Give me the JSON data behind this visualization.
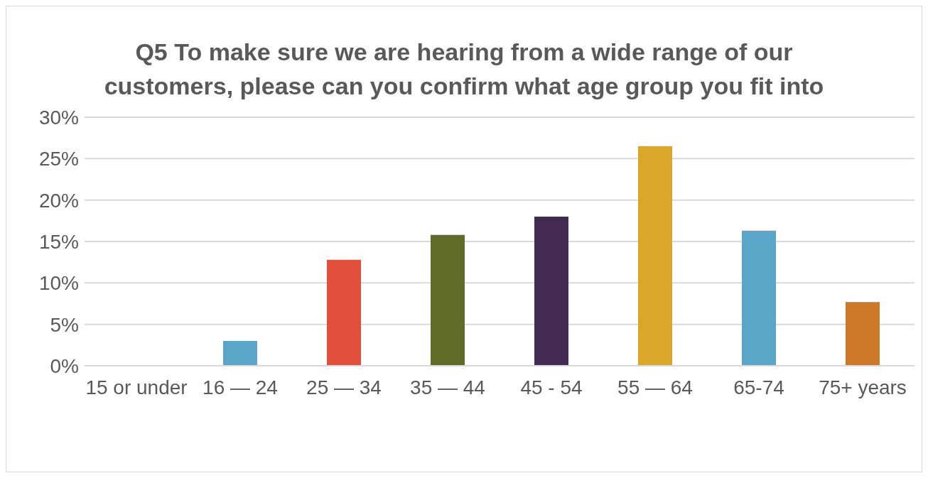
{
  "chart_data": {
    "type": "bar",
    "title": "Q5 To make sure we are hearing from a wide range of our customers, please can you confirm what age group you fit into",
    "categories": [
      "15 or under",
      "16 — 24",
      "25 — 34",
      "35 — 44",
      "45 - 54",
      "55 — 64",
      "65-74",
      "75+ years"
    ],
    "values": [
      0,
      3,
      12.8,
      15.8,
      18,
      26.5,
      16.3,
      7.7
    ],
    "colors": [
      "#5ba6c8",
      "#5ba6c8",
      "#e04e3c",
      "#5f6b26",
      "#432a53",
      "#d9a82a",
      "#5ba6c8",
      "#cc7a2a"
    ],
    "ylim": [
      0,
      30
    ],
    "yticks": [
      {
        "value": 0,
        "label": "0%"
      },
      {
        "value": 5,
        "label": "5%"
      },
      {
        "value": 10,
        "label": "10%"
      },
      {
        "value": 15,
        "label": "15%"
      },
      {
        "value": 20,
        "label": "20%"
      },
      {
        "value": 25,
        "label": "25%"
      },
      {
        "value": 30,
        "label": "30%"
      }
    ],
    "grid": "y"
  }
}
